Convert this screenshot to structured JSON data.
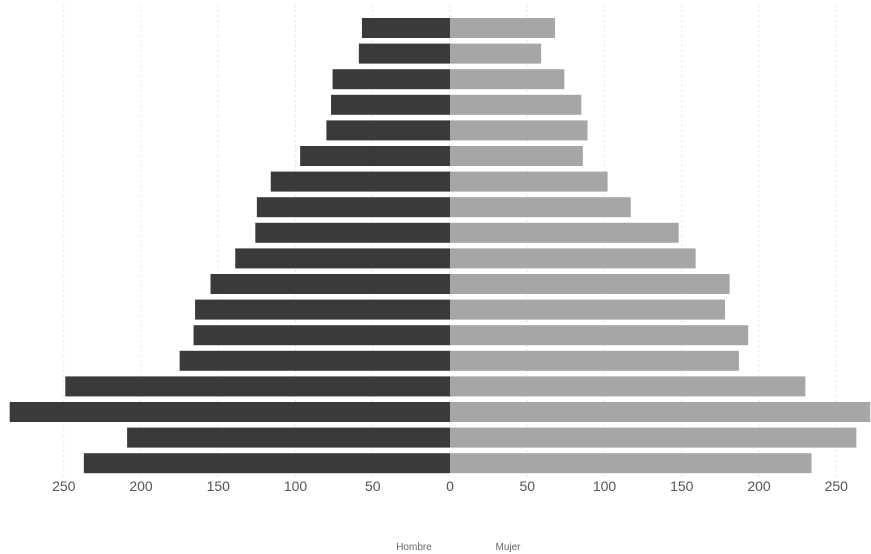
{
  "chart_data": {
    "type": "bar",
    "subtype": "population-pyramid",
    "title": "",
    "xlabel": "",
    "ylabel": "",
    "xlim": [
      -285,
      270
    ],
    "x_ticks": [
      -250,
      -200,
      -150,
      -100,
      -50,
      0,
      50,
      100,
      150,
      200,
      250
    ],
    "x_tick_labels": [
      "250",
      "200",
      "150",
      "100",
      "50",
      "0",
      "50",
      "100",
      "150",
      "200",
      "250"
    ],
    "grid": true,
    "legend": "bottom-center",
    "series": [
      {
        "name": "Hombre",
        "color": "#3a3a3a",
        "values": [
          57,
          59,
          76,
          77,
          80,
          97,
          116,
          125,
          126,
          139,
          155,
          165,
          166,
          175,
          249,
          285,
          209,
          237
        ]
      },
      {
        "name": "Mujer",
        "color": "#a6a6a6",
        "values": [
          68,
          59,
          74,
          85,
          89,
          86,
          102,
          117,
          148,
          159,
          181,
          178,
          193,
          187,
          230,
          272,
          263,
          234
        ]
      }
    ]
  }
}
